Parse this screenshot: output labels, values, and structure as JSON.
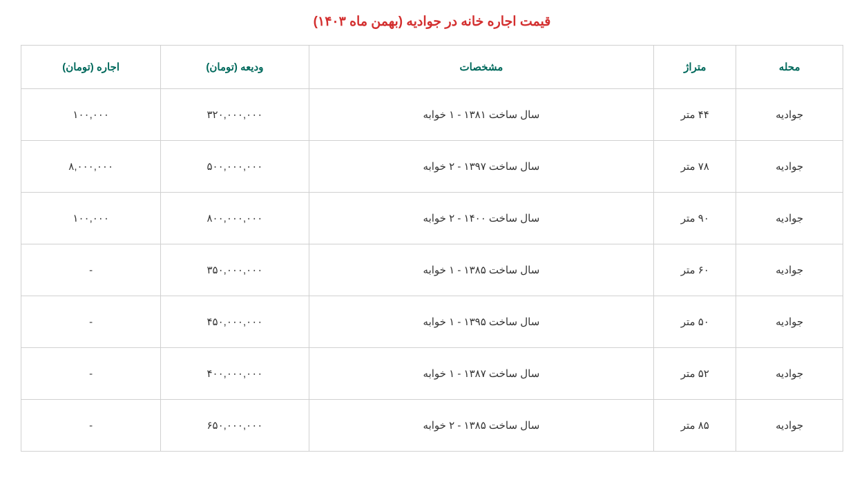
{
  "title": "قیمت اجاره خانه در جوادیه (بهمن ماه ۱۴۰۳)",
  "columns": {
    "neighborhood": "محله",
    "area": "متراژ",
    "specs": "مشخصات",
    "deposit": "ودیعه (تومان)",
    "rent": "اجاره (تومان)"
  },
  "rows": [
    {
      "neighborhood": "جوادیه",
      "area": "۴۴ متر",
      "specs": "سال ساخت ۱۳۸۱ - ۱ خوابه",
      "deposit": "۳۲۰,۰۰۰,۰۰۰",
      "rent": "۱۰۰,۰۰۰"
    },
    {
      "neighborhood": "جوادیه",
      "area": "۷۸ متر",
      "specs": "سال ساخت ۱۳۹۷ - ۲ خوابه",
      "deposit": "۵۰۰,۰۰۰,۰۰۰",
      "rent": "۸,۰۰۰,۰۰۰"
    },
    {
      "neighborhood": "جوادیه",
      "area": "۹۰ متر",
      "specs": "سال ساخت ۱۴۰۰ - ۲ خوابه",
      "deposit": "۸۰۰,۰۰۰,۰۰۰",
      "rent": "۱۰۰,۰۰۰"
    },
    {
      "neighborhood": "جوادیه",
      "area": "۶۰ متر",
      "specs": "سال ساخت ۱۳۸۵ - ۱ خوابه",
      "deposit": "۳۵۰,۰۰۰,۰۰۰",
      "rent": "-"
    },
    {
      "neighborhood": "جوادیه",
      "area": "۵۰ متر",
      "specs": "سال ساخت ۱۳۹۵ - ۱ خوابه",
      "deposit": "۴۵۰,۰۰۰,۰۰۰",
      "rent": "-"
    },
    {
      "neighborhood": "جوادیه",
      "area": "۵۲ متر",
      "specs": "سال ساخت ۱۳۸۷ - ۱ خوابه",
      "deposit": "۴۰۰,۰۰۰,۰۰۰",
      "rent": "-"
    },
    {
      "neighborhood": "جوادیه",
      "area": "۸۵ متر",
      "specs": "سال ساخت ۱۳۸۵ - ۲ خوابه",
      "deposit": "۶۵۰,۰۰۰,۰۰۰",
      "rent": "-"
    }
  ],
  "styling": {
    "title_color": "#d32f2f",
    "header_color": "#00695c",
    "cell_text_color": "#333333",
    "border_color": "#d0d0d0",
    "background_color": "#ffffff",
    "title_fontsize": 19,
    "cell_fontsize": 15,
    "column_widths": {
      "neighborhood": "13%",
      "area": "10%",
      "specs": "42%",
      "deposit": "18%",
      "rent": "17%"
    }
  }
}
